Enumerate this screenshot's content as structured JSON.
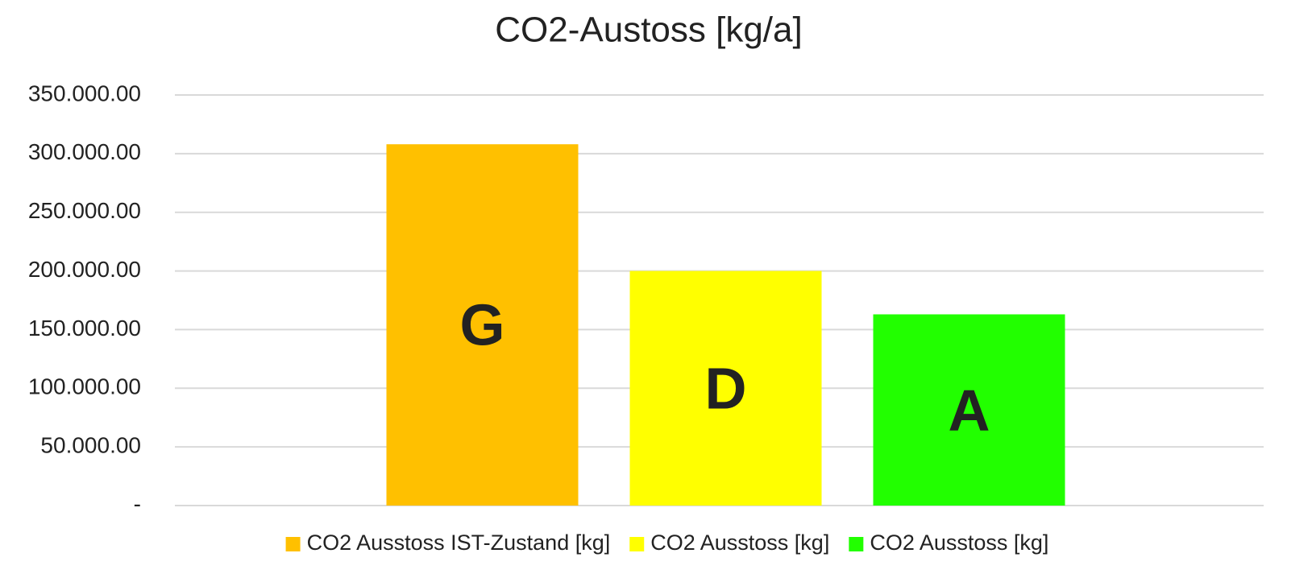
{
  "chart_data": {
    "type": "bar",
    "title": "CO2-Austoss  [kg/a]",
    "categories": [
      null
    ],
    "series": [
      {
        "name": "CO2 Ausstoss IST-Zustand [kg]",
        "color": "#FFC000",
        "values": [
          308000
        ],
        "label": "G"
      },
      {
        "name": "CO2 Ausstoss [kg]",
        "color": "#FFFF00",
        "values": [
          200000
        ],
        "label": "D"
      },
      {
        "name": "CO2 Ausstoss [kg]",
        "color": "#22FF00",
        "values": [
          163000
        ],
        "label": "A"
      }
    ],
    "ylim": [
      0,
      350000
    ],
    "yticks": [
      {
        "value": 0,
        "label": "-"
      },
      {
        "value": 50000,
        "label": "50.000.00"
      },
      {
        "value": 100000,
        "label": "100.000.00"
      },
      {
        "value": 150000,
        "label": "150.000.00"
      },
      {
        "value": 200000,
        "label": "200.000.00"
      },
      {
        "value": 250000,
        "label": "250.000.00"
      },
      {
        "value": 300000,
        "label": "300.000.00"
      },
      {
        "value": 350000,
        "label": "350.000.00"
      }
    ],
    "grid": true,
    "legend": "bottom"
  }
}
